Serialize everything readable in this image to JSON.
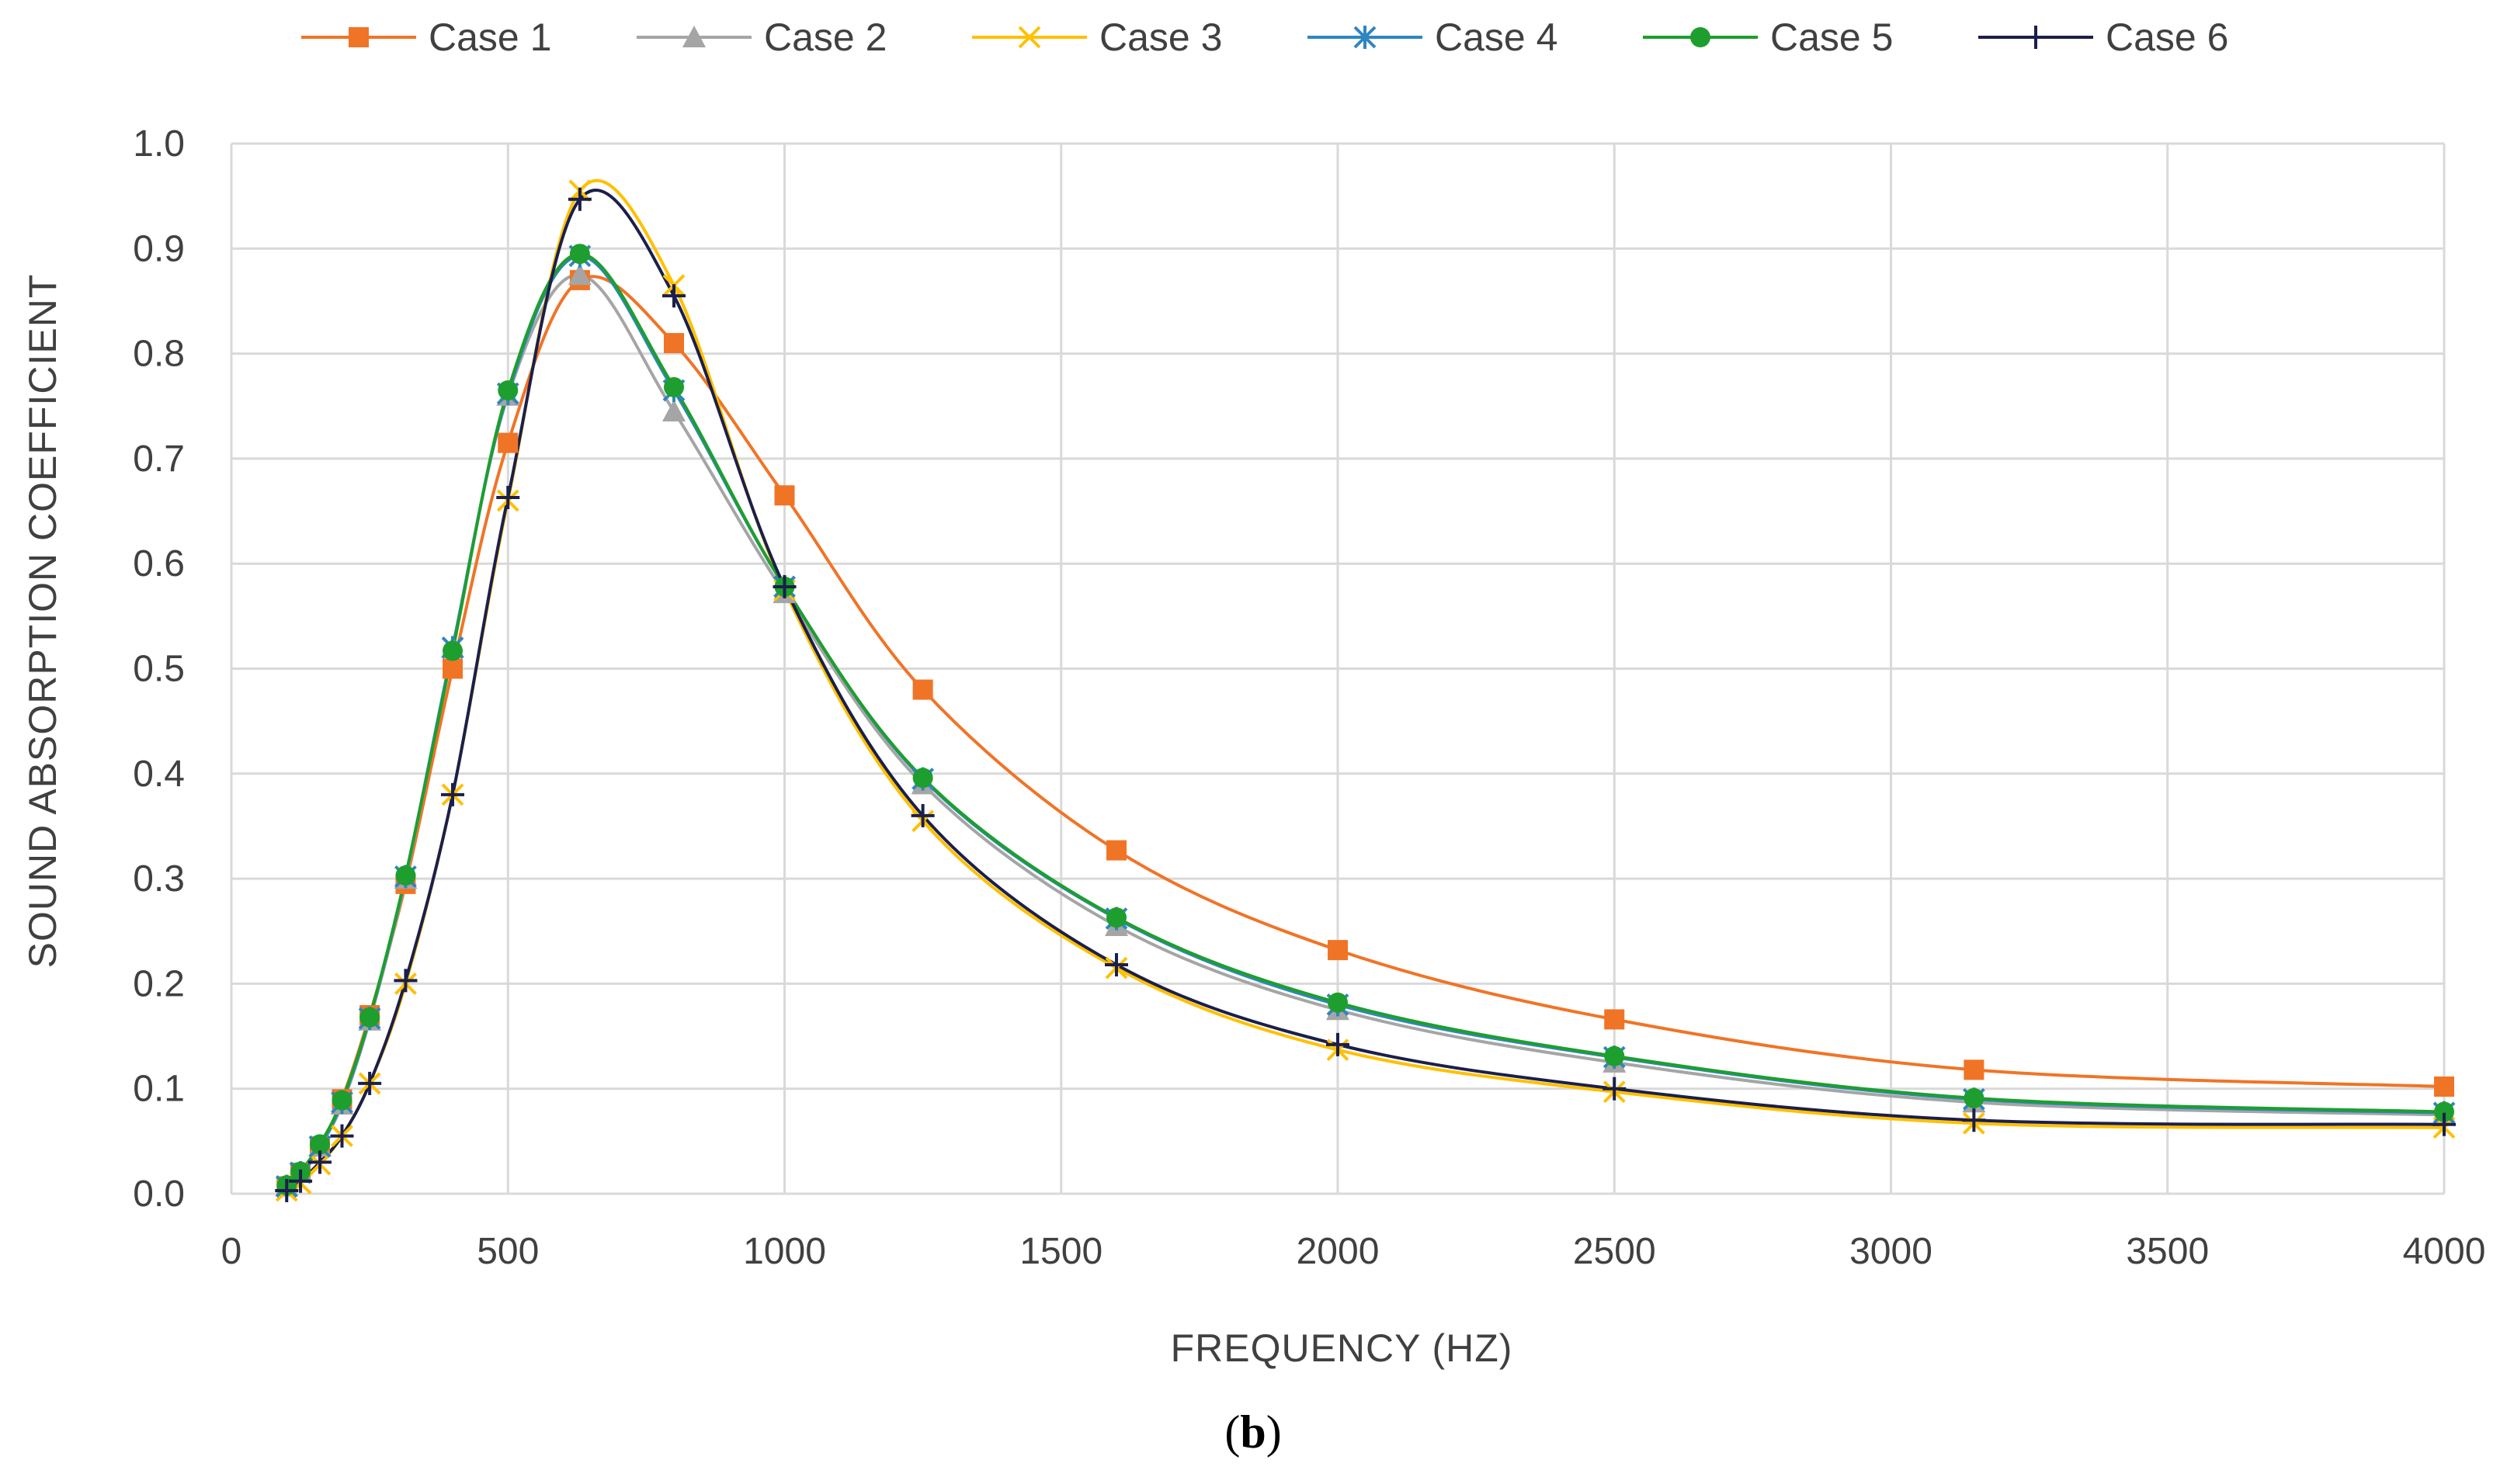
{
  "chart_data": {
    "type": "line",
    "title": "",
    "xlabel": "FREQUENCY (HZ)",
    "ylabel": "SOUND ABSORPTION COEFFICIENT",
    "caption_open": "(",
    "caption_bold": "b",
    "caption_close": ")",
    "xlim": [
      0,
      4000
    ],
    "ylim": [
      0.0,
      1.0
    ],
    "xticks": [
      0,
      500,
      1000,
      1500,
      2000,
      2500,
      3000,
      3500,
      4000
    ],
    "yticks": [
      0.0,
      0.1,
      0.2,
      0.3,
      0.4,
      0.5,
      0.6,
      0.7,
      0.8,
      0.9,
      1.0
    ],
    "xtick_labels": [
      "0",
      "500",
      "1000",
      "1500",
      "2000",
      "2500",
      "3000",
      "3500",
      "4000"
    ],
    "ytick_labels": [
      "0.0",
      "0.1",
      "0.2",
      "0.3",
      "0.4",
      "0.5",
      "0.6",
      "0.7",
      "0.8",
      "0.9",
      "1.0"
    ],
    "grid": true,
    "legend_position": "top",
    "x": [
      100,
      125,
      160,
      200,
      250,
      315,
      400,
      500,
      630,
      800,
      1000,
      1250,
      1600,
      2000,
      2500,
      3150,
      4000
    ],
    "series": [
      {
        "name": "Case 1",
        "color": "#F07426",
        "marker": "square",
        "values": [
          0.007,
          0.02,
          0.045,
          0.09,
          0.17,
          0.295,
          0.5,
          0.715,
          0.87,
          0.81,
          0.665,
          0.48,
          0.327,
          0.232,
          0.166,
          0.118,
          0.102
        ]
      },
      {
        "name": "Case 2",
        "color": "#A5A5A5",
        "marker": "triangle",
        "values": [
          0.007,
          0.02,
          0.045,
          0.085,
          0.165,
          0.3,
          0.52,
          0.76,
          0.875,
          0.745,
          0.572,
          0.39,
          0.255,
          0.175,
          0.125,
          0.087,
          0.075
        ]
      },
      {
        "name": "Case 3",
        "color": "#FFC000",
        "marker": "x",
        "values": [
          0.003,
          0.01,
          0.028,
          0.055,
          0.105,
          0.2,
          0.38,
          0.66,
          0.955,
          0.865,
          0.575,
          0.355,
          0.215,
          0.137,
          0.097,
          0.067,
          0.063
        ]
      },
      {
        "name": "Case 4",
        "color": "#2E86C1",
        "marker": "star",
        "values": [
          0.007,
          0.02,
          0.045,
          0.087,
          0.167,
          0.302,
          0.52,
          0.762,
          0.893,
          0.765,
          0.578,
          0.395,
          0.262,
          0.18,
          0.13,
          0.09,
          0.077
        ]
      },
      {
        "name": "Case 5",
        "color": "#1E9E2E",
        "marker": "circle",
        "values": [
          0.008,
          0.021,
          0.047,
          0.089,
          0.168,
          0.303,
          0.517,
          0.765,
          0.895,
          0.768,
          0.578,
          0.396,
          0.263,
          0.182,
          0.131,
          0.091,
          0.078
        ]
      },
      {
        "name": "Case 6",
        "color": "#1B1F4B",
        "marker": "plus",
        "values": [
          0.003,
          0.012,
          0.03,
          0.055,
          0.105,
          0.203,
          0.38,
          0.663,
          0.947,
          0.855,
          0.578,
          0.36,
          0.218,
          0.142,
          0.1,
          0.07,
          0.066
        ]
      }
    ]
  }
}
